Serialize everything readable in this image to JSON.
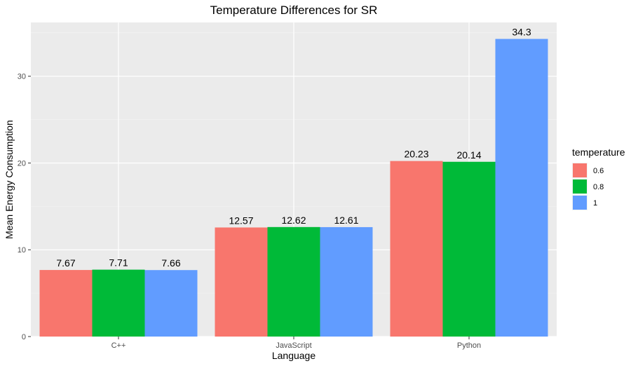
{
  "chart_data": {
    "type": "bar",
    "title": "Temperature Differences for  SR",
    "xlabel": "Language",
    "ylabel": "Mean Energy Consumption",
    "categories": [
      "C++",
      "JavaScript",
      "Python"
    ],
    "ylim": [
      0,
      36.2
    ],
    "yticks": [
      0,
      10,
      20,
      30
    ],
    "ytick_labels": [
      "0",
      "10",
      "20",
      "30"
    ],
    "grid": true,
    "legend": {
      "title": "temperature",
      "position": "right"
    },
    "series": [
      {
        "name": "0.6",
        "color": "#F8766D",
        "values": [
          7.67,
          12.57,
          20.23
        ],
        "labels": [
          "7.67",
          "12.57",
          "20.23"
        ]
      },
      {
        "name": "0.8",
        "color": "#00BA38",
        "values": [
          7.71,
          12.62,
          20.14
        ],
        "labels": [
          "7.71",
          "12.62",
          "20.14"
        ]
      },
      {
        "name": "1",
        "color": "#619CFF",
        "values": [
          7.66,
          12.61,
          34.3
        ],
        "labels": [
          "7.66",
          "12.61",
          "34.3"
        ]
      }
    ]
  }
}
